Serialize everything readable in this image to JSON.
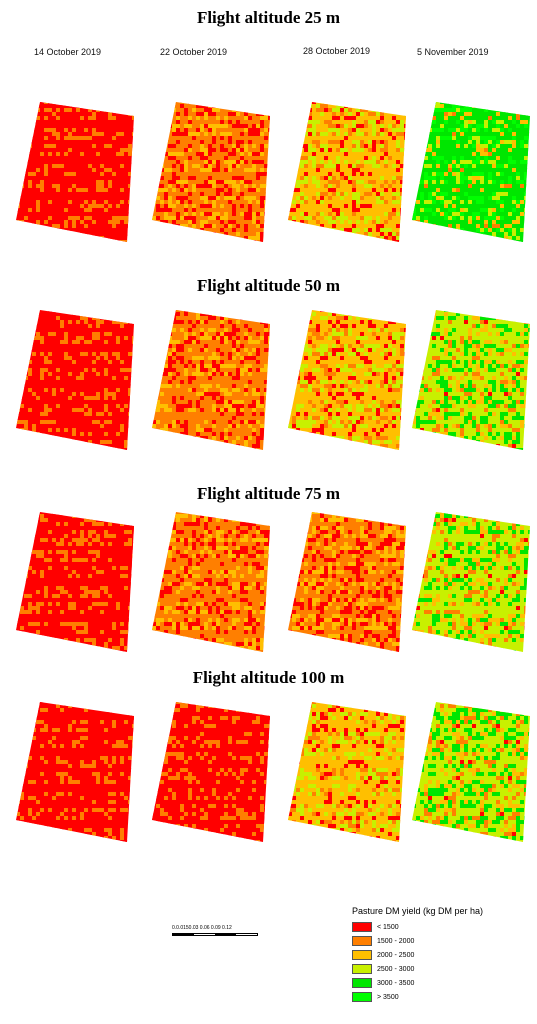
{
  "rows": [
    {
      "title": "Flight altitude 25 m",
      "levels": [
        0,
        1,
        2,
        4
      ]
    },
    {
      "title": "Flight altitude 50 m",
      "levels": [
        0,
        1,
        2,
        3
      ]
    },
    {
      "title": "Flight altitude 75 m",
      "levels": [
        0,
        1,
        1,
        3
      ]
    },
    {
      "title": "Flight altitude 100 m",
      "levels": [
        0,
        0,
        2,
        3
      ]
    }
  ],
  "dates": [
    "14 October 2019",
    "22 October 2019",
    "28 October 2019",
    "5 November 2019"
  ],
  "scale_labels": "0.0.0150.03   0.06   0.09   0.12",
  "legend": {
    "title": "Pasture DM yield (kg DM per ha)",
    "items": [
      {
        "label": "< 1500",
        "color": "#ff0000"
      },
      {
        "label": "1500 - 2000",
        "color": "#ff7f00"
      },
      {
        "label": "2000 - 2500",
        "color": "#ffbf00"
      },
      {
        "label": "2500 - 3000",
        "color": "#c8f000"
      },
      {
        "label": "3000 - 3500",
        "color": "#00e600"
      },
      {
        "label": "> 3500",
        "color": "#00ff00"
      }
    ]
  }
}
